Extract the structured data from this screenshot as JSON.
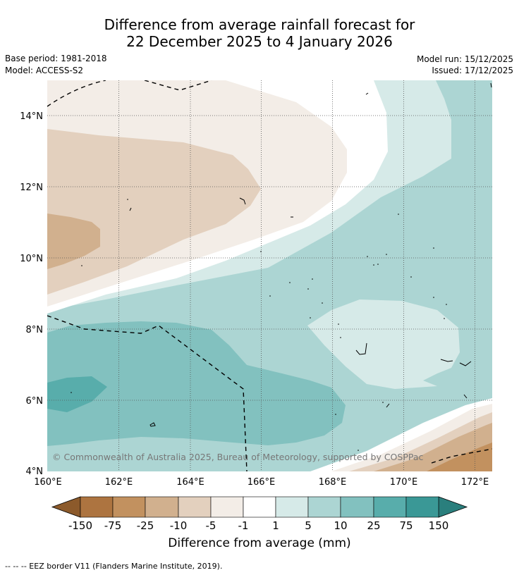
{
  "header": {
    "title_line1": "Difference from average rainfall forecast for",
    "title_line2": "22 December 2025 to 4 January 2026",
    "base_period": "Base period: 1981-2018",
    "model": "Model: ACCESS-S2",
    "model_run": "Model run: 15/12/2025",
    "issued": "Issued: 17/12/2025"
  },
  "map": {
    "lon_range": [
      160,
      172.5
    ],
    "lat_range": [
      4,
      15
    ],
    "lon_ticks": [
      "160°E",
      "162°E",
      "164°E",
      "166°E",
      "168°E",
      "170°E",
      "172°E"
    ],
    "lat_ticks": [
      "4°N",
      "6°N",
      "8°N",
      "10°N",
      "12°N",
      "14°N"
    ],
    "copyright": "© Commonwealth of Australia 2025, Bureau of Meteorology, supported by COSPPac"
  },
  "colorbar": {
    "title": "Difference from average (mm)",
    "tick_labels": [
      "-150",
      "-75",
      "-25",
      "-10",
      "-5",
      "-1",
      "1",
      "5",
      "10",
      "25",
      "75",
      "150"
    ],
    "colors": [
      "#8c5a2b",
      "#ad7440",
      "#c2915f",
      "#d1b08e",
      "#e3d0be",
      "#f3ede7",
      "#ffffff",
      "#d6eae8",
      "#acd5d3",
      "#82c1bf",
      "#58adab",
      "#3a9896",
      "#2a7f7d"
    ],
    "extend_low_color": "#8c5a2b",
    "extend_high_color": "#2a7f7d"
  },
  "legend": {
    "eez_text": "--  --  -- EEZ border V11 (Flanders Marine Institute, 2019)."
  },
  "icons": {
    "eez": "dashed-line-icon"
  }
}
